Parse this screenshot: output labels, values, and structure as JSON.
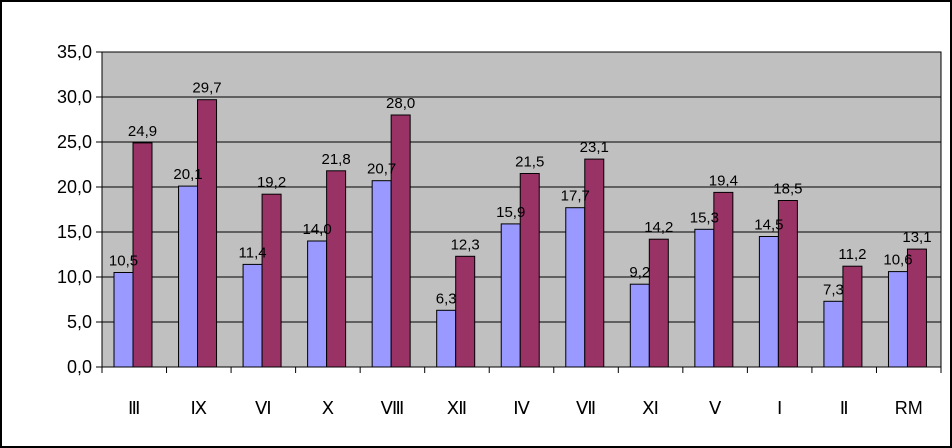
{
  "chart_data": {
    "type": "bar",
    "categories": [
      "Ⅲ",
      "Ⅸ",
      "Ⅵ",
      "Ⅹ",
      "Ⅷ",
      "Ⅻ",
      "Ⅳ",
      "Ⅶ",
      "Ⅺ",
      "Ⅴ",
      "Ⅰ",
      "Ⅱ",
      "RM"
    ],
    "series": [
      {
        "values": [
          10.5,
          20.1,
          11.4,
          14.0,
          20.7,
          6.3,
          15.9,
          17.7,
          9.2,
          15.3,
          14.5,
          7.3,
          10.6
        ],
        "labels": [
          "10,5",
          "20,1",
          "11,4",
          "14,0",
          "20,7",
          "6,3",
          "15,9",
          "17,7",
          "9,2",
          "15,3",
          "14,5",
          "7,3",
          "10,6"
        ],
        "color": "#9999ff"
      },
      {
        "values": [
          24.9,
          29.7,
          19.2,
          21.8,
          28.0,
          12.3,
          21.5,
          23.1,
          14.2,
          19.4,
          18.5,
          11.2,
          13.1
        ],
        "labels": [
          "24,9",
          "29,7",
          "19,2",
          "21,8",
          "28,0",
          "12,3",
          "21,5",
          "23,1",
          "14,2",
          "19,4",
          "18,5",
          "11,2",
          "13,1"
        ],
        "color": "#993366"
      }
    ],
    "ylim": [
      0,
      35
    ],
    "yticks": [
      0,
      5,
      10,
      15,
      20,
      25,
      30,
      35
    ],
    "ytick_labels": [
      "0,0",
      "5,0",
      "10,0",
      "15,0",
      "20,0",
      "25,0",
      "30,0",
      "35,0"
    ],
    "grid": true,
    "legend": "none",
    "title": "",
    "xlabel": "",
    "ylabel": "",
    "colors": {
      "plot_background": "#c0c0c0",
      "gridline": "#000000",
      "frame": "#000000"
    }
  }
}
